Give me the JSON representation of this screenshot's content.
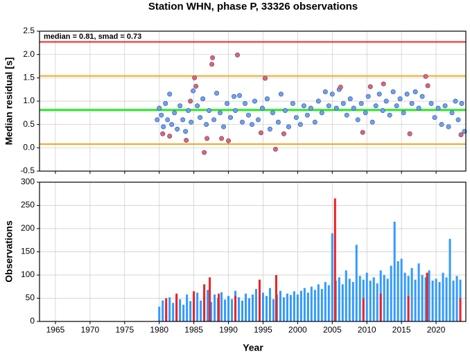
{
  "chart_data": [
    {
      "type": "scatter",
      "title": "Station WHN, phase P, 33326 observations",
      "ylabel": "Median residual [s]",
      "annotation": "median = 0.81, smad = 0.73",
      "xlim": [
        1962.7,
        2024.3
      ],
      "xticks": [
        1965,
        1970,
        1975,
        1980,
        1985,
        1990,
        1995,
        2000,
        2005,
        2010,
        2015,
        2020
      ],
      "ylim": [
        -0.5,
        2.5
      ],
      "yticks": [
        -0.5,
        {
          "value": 0,
          "label": "0.0"
        },
        0.5,
        {
          "value": 1,
          "label": "1.0"
        },
        1.5,
        {
          "value": 2,
          "label": "2.0"
        },
        2.5
      ],
      "grid": true,
      "reference_lines": [
        {
          "value": 2.27,
          "color": "#ff2020"
        },
        {
          "value": 1.54,
          "color": "#f5a623"
        },
        {
          "value": 0.81,
          "color": "#22ee22"
        },
        {
          "value": 0.08,
          "color": "#f5a623"
        }
      ],
      "series": [
        {
          "color": "#6fa0ee",
          "x": [
            1979.7,
            1980.0,
            1980.3,
            1980.6,
            1980.9,
            1981.2,
            1981.5,
            1981.8,
            1982.2,
            1982.6,
            1983.0,
            1983.4,
            1983.8,
            1984.2,
            1984.6,
            1984.9,
            1985.5,
            1985.9,
            1986.3,
            1986.8,
            1987.2,
            1987.9,
            1988.3,
            1988.8,
            1989.3,
            1989.8,
            1990.3,
            1990.8,
            1991.0,
            1991.6,
            1992.0,
            1992.4,
            1992.9,
            1993.4,
            1993.8,
            1994.3,
            1994.9,
            1995.6,
            1996.0,
            1996.4,
            1997.2,
            1997.6,
            1998.2,
            1998.7,
            1999.3,
            1999.8,
            2000.4,
            2000.9,
            2001.4,
            2001.9,
            2002.5,
            2003.0,
            2003.5,
            2004.0,
            2004.5,
            2005.0,
            2005.6,
            2006.0,
            2006.6,
            2007.1,
            2007.6,
            2008.1,
            2008.7,
            2009.2,
            2009.8,
            2010.2,
            2010.8,
            2011.3,
            2011.8,
            2012.3,
            2012.8,
            2013.3,
            2013.8,
            2014.3,
            2014.8,
            2015.3,
            2015.8,
            2016.5,
            2017.0,
            2017.5,
            2018.0,
            2019.3,
            2019.8,
            2020.3,
            2020.8,
            2021.3,
            2021.8,
            2022.3,
            2022.8,
            2023.2,
            2023.7,
            2024.1
          ],
          "values": [
            0.6,
            0.85,
            0.7,
            0.45,
            0.95,
            0.6,
            1.15,
            0.5,
            0.75,
            0.4,
            0.9,
            0.6,
            0.35,
            0.8,
            0.55,
            1.22,
            0.9,
            0.65,
            1.05,
            0.5,
            0.8,
            0.6,
            1.17,
            0.75,
            0.45,
            0.95,
            0.65,
            1.1,
            0.8,
            1.12,
            0.55,
            0.95,
            0.7,
            0.5,
            1.0,
            0.6,
            0.85,
            1.05,
            0.4,
            0.75,
            0.55,
            1.15,
            0.8,
            0.45,
            0.95,
            0.65,
            0.5,
            0.9,
            0.7,
            0.85,
            0.55,
            1.0,
            0.75,
            1.2,
            0.9,
            1.15,
            0.85,
            1.25,
            0.95,
            0.7,
            1.05,
            0.85,
            0.6,
            0.95,
            0.75,
            1.1,
            0.55,
            0.9,
            1.15,
            0.8,
            1.0,
            0.7,
            1.2,
            0.9,
            1.05,
            0.75,
            1.15,
            0.95,
            1.2,
            0.85,
            1.1,
            0.95,
            0.65,
            0.85,
            0.5,
            0.9,
            0.45,
            0.75,
            1.0,
            0.6,
            0.95,
            0.35
          ]
        },
        {
          "color": "#f06060",
          "x": [
            1985.1,
            1985.3,
            1987.7,
            1987.6,
            1991.3,
            1995.3,
            1986.5,
            1996.8,
            1980.5,
            1981.5,
            1983.9,
            1986.9,
            1989.0,
            1990.0,
            1994.7,
            1998.0,
            2009.4,
            2006.2,
            2010.5,
            2012.4,
            2018.5,
            2018.8,
            2023.6,
            2016.2,
            1984.5
          ],
          "values": [
            1.5,
            1.32,
            1.93,
            1.79,
            1.99,
            1.49,
            -0.1,
            -0.03,
            0.3,
            0.25,
            0.16,
            0.2,
            0.2,
            0.15,
            0.32,
            0.3,
            0.33,
            1.3,
            1.31,
            1.37,
            1.53,
            1.33,
            0.28,
            0.3,
            1.0
          ]
        }
      ]
    },
    {
      "type": "bar",
      "ylabel": "Observations",
      "xlabel": "Year",
      "xlim": [
        1962.7,
        2024.3
      ],
      "xticks": [
        1965,
        1970,
        1975,
        1980,
        1985,
        1990,
        1995,
        2000,
        2005,
        2010,
        2015,
        2020
      ],
      "ylim": [
        0,
        300
      ],
      "yticks": [
        0,
        50,
        100,
        150,
        200,
        250,
        300
      ],
      "grid": true,
      "series": [
        {
          "color": "#3399ff",
          "x": [
            1980.0,
            1980.5,
            1981.0,
            1981.5,
            1982.0,
            1982.5,
            1983.0,
            1983.5,
            1984.0,
            1984.5,
            1985.0,
            1985.5,
            1986.0,
            1986.5,
            1987.0,
            1987.5,
            1988.0,
            1988.5,
            1989.0,
            1989.5,
            1990.0,
            1990.5,
            1991.0,
            1991.5,
            1992.0,
            1992.5,
            1993.0,
            1993.5,
            1994.0,
            1994.5,
            1995.0,
            1995.5,
            1996.0,
            1996.5,
            1997.0,
            1997.5,
            1998.0,
            1998.5,
            1999.0,
            1999.5,
            2000.0,
            2000.5,
            2001.0,
            2001.5,
            2002.0,
            2002.5,
            2003.0,
            2003.5,
            2004.0,
            2004.5,
            2005.0,
            2005.5,
            2006.0,
            2006.5,
            2007.0,
            2007.5,
            2008.0,
            2008.5,
            2009.0,
            2009.5,
            2010.0,
            2010.5,
            2011.0,
            2011.5,
            2012.0,
            2012.5,
            2013.0,
            2013.5,
            2014.0,
            2014.5,
            2015.0,
            2015.5,
            2016.0,
            2016.5,
            2017.0,
            2017.5,
            2018.0,
            2018.5,
            2019.0,
            2019.5,
            2020.0,
            2020.5,
            2021.0,
            2021.5,
            2022.0,
            2022.5,
            2023.0,
            2023.5
          ],
          "values": [
            32,
            45,
            38,
            52,
            40,
            55,
            48,
            36,
            58,
            44,
            50,
            62,
            45,
            55,
            68,
            42,
            58,
            50,
            63,
            47,
            55,
            48,
            66,
            52,
            45,
            60,
            50,
            58,
            70,
            46,
            62,
            55,
            72,
            48,
            58,
            66,
            52,
            60,
            57,
            65,
            58,
            66,
            72,
            62,
            75,
            68,
            80,
            70,
            85,
            78,
            190,
            88,
            95,
            80,
            110,
            92,
            85,
            165,
            98,
            90,
            105,
            88,
            95,
            82,
            110,
            100,
            92,
            120,
            215,
            130,
            135,
            105,
            98,
            115,
            90,
            125,
            100,
            95,
            110,
            88,
            92,
            85,
            105,
            95,
            178,
            88,
            98,
            90
          ]
        },
        {
          "color": "#ee2020",
          "x": [
            1981.0,
            1982.5,
            1985.0,
            1986.5,
            1987.3,
            1988.6,
            1991.0,
            1994.5,
            1996.9,
            2005.4,
            2009.5,
            2012.0,
            2016.0,
            2018.7,
            2023.5
          ],
          "values": [
            50,
            60,
            65,
            80,
            95,
            60,
            55,
            90,
            100,
            265,
            50,
            60,
            55,
            105,
            50
          ]
        }
      ]
    }
  ]
}
